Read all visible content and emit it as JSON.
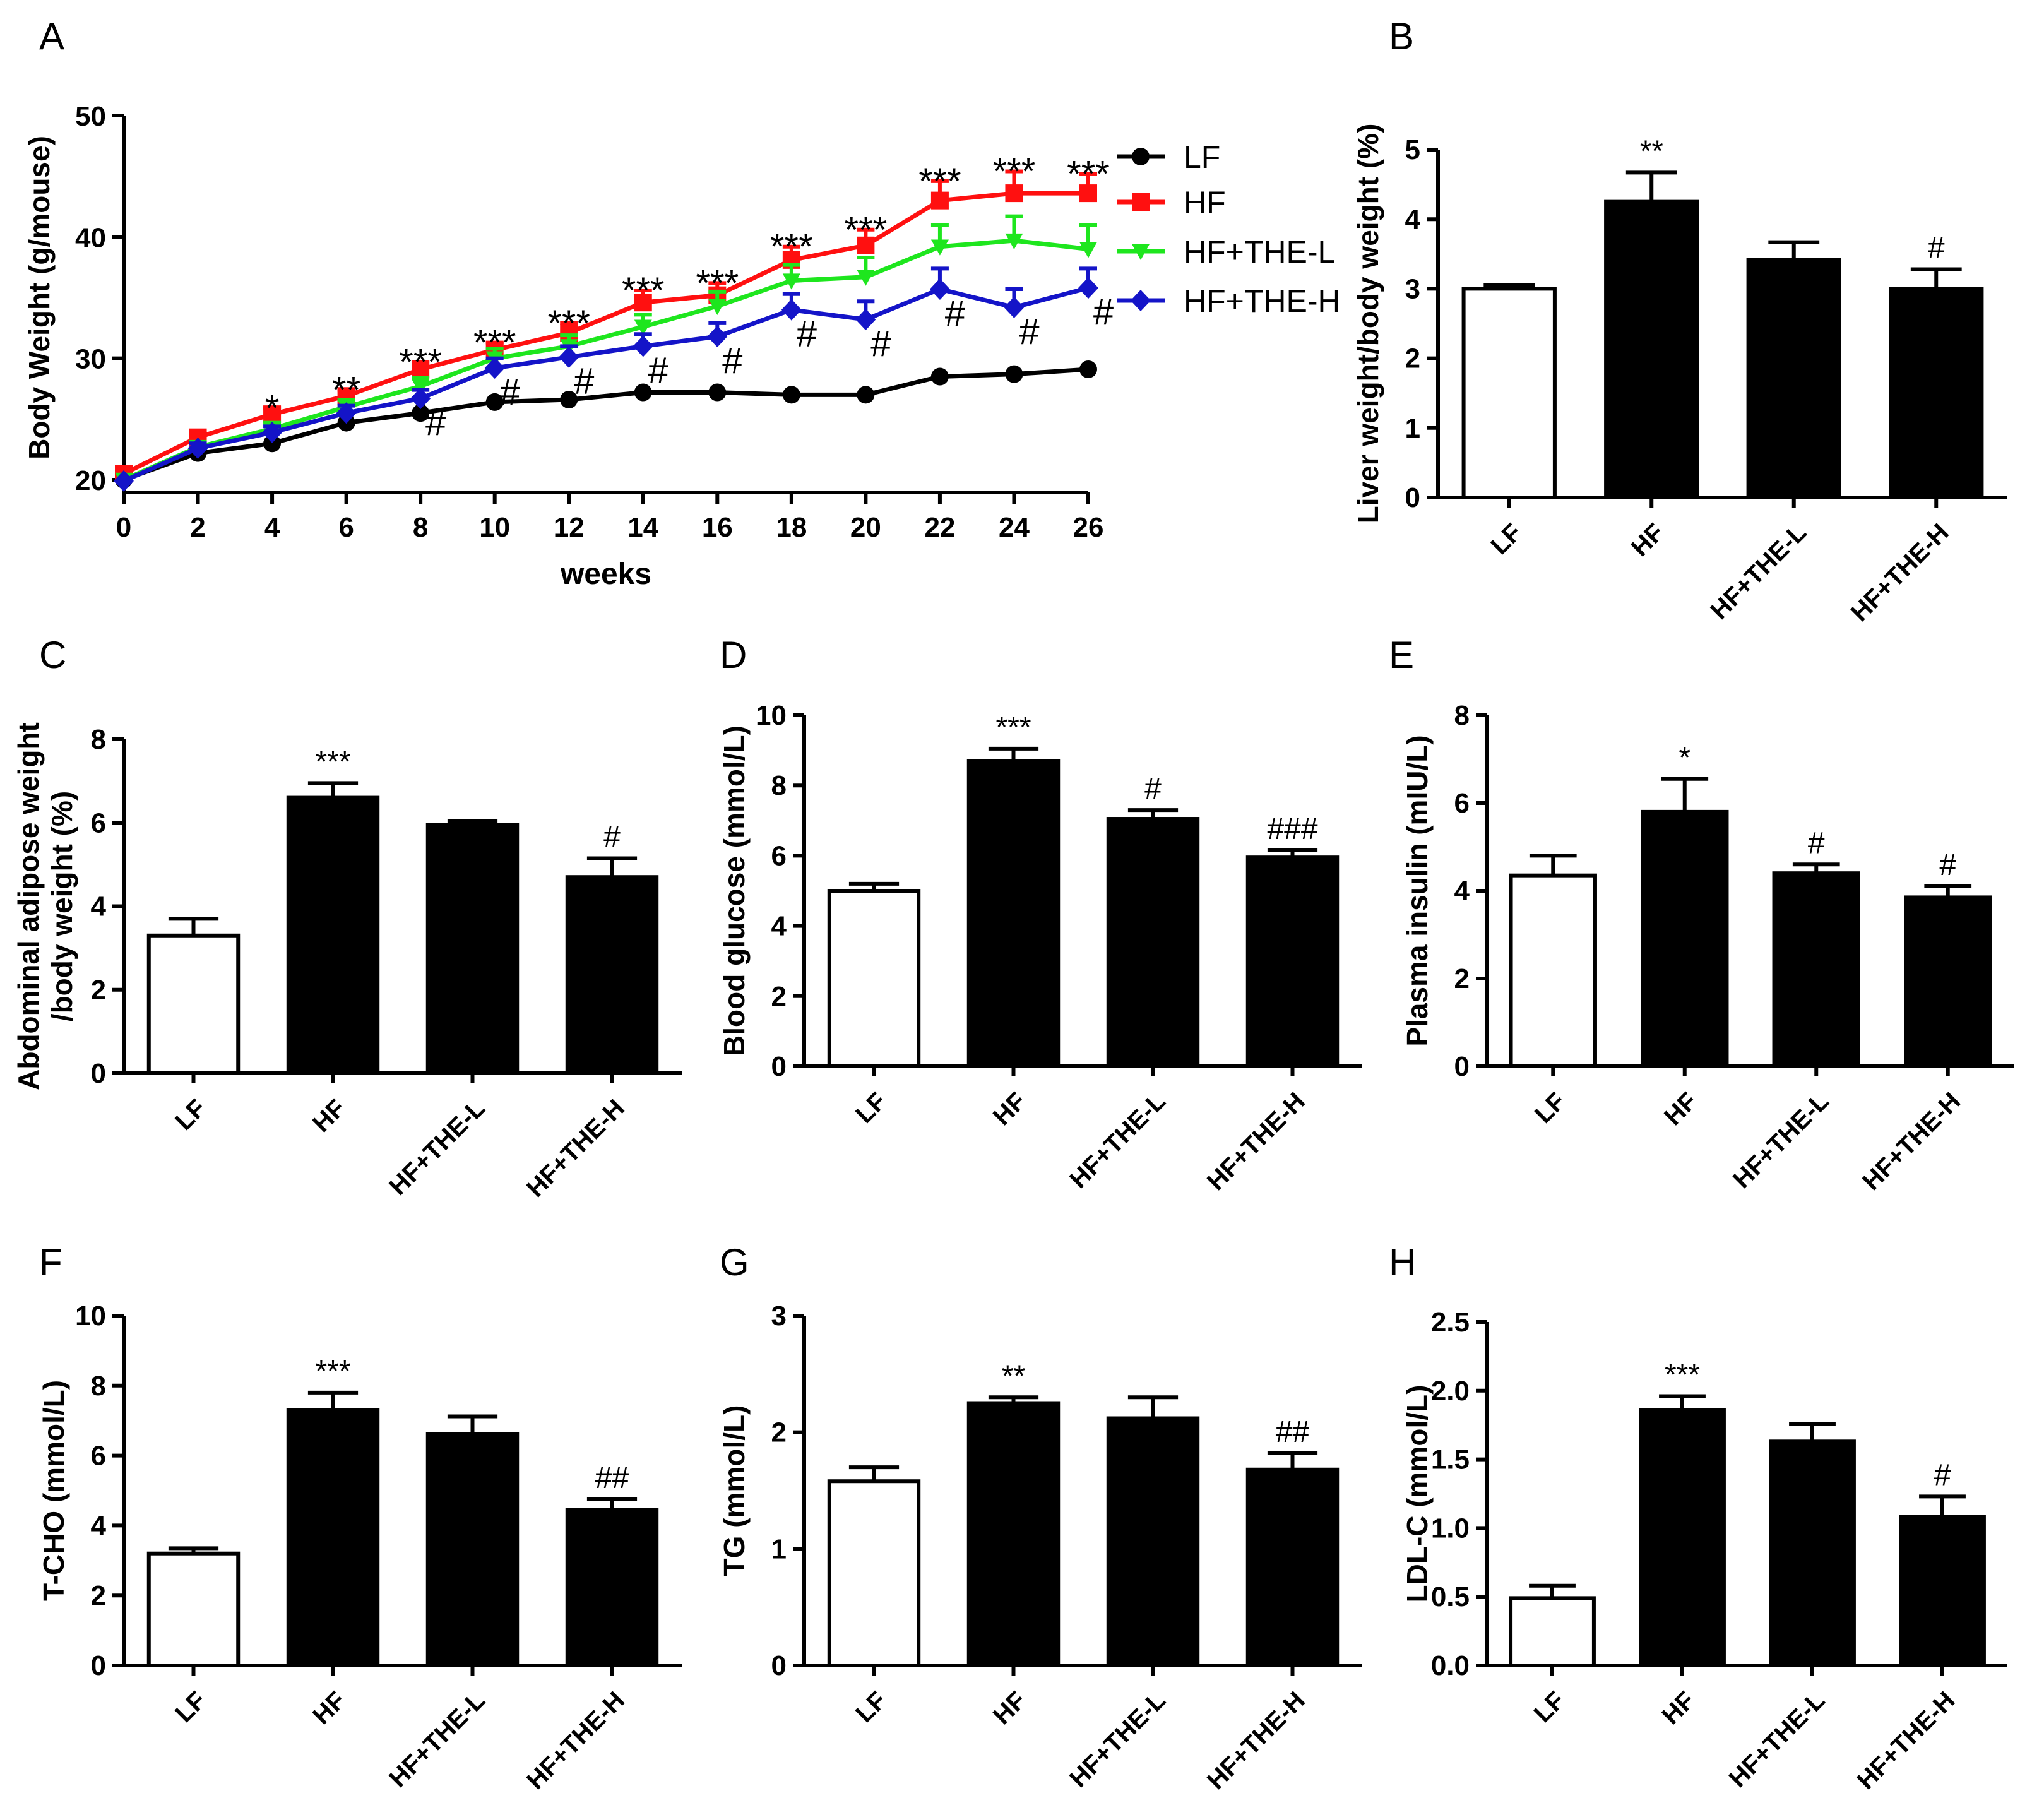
{
  "chart_data": [
    {
      "panel": "A",
      "type": "line",
      "xlabel": "weeks",
      "ylabel": "Body Weight (g/mouse)",
      "xlim": [
        0,
        26
      ],
      "ylim": [
        20,
        50
      ],
      "xticks": [
        0,
        2,
        4,
        6,
        8,
        10,
        12,
        14,
        16,
        18,
        20,
        22,
        24,
        26
      ],
      "yticks": [
        20,
        30,
        40,
        50
      ],
      "x": [
        0,
        2,
        4,
        6,
        8,
        10,
        12,
        14,
        16,
        18,
        20,
        22,
        24,
        26
      ],
      "series": [
        {
          "name": "LF",
          "color": "#000000",
          "marker": "circle",
          "values": [
            20.0,
            22.2,
            23.0,
            24.7,
            25.5,
            26.4,
            26.6,
            27.2,
            27.2,
            27.0,
            27.0,
            28.5,
            28.7,
            29.1
          ],
          "errors": [
            0.3,
            0.3,
            0.3,
            0.3,
            0.3,
            0.3,
            0.3,
            0.3,
            0.3,
            0.5,
            0.3,
            0.3,
            0.3,
            0.3
          ]
        },
        {
          "name": "HF",
          "color": "#ff1010",
          "marker": "square",
          "values": [
            20.5,
            23.5,
            25.4,
            26.9,
            29.1,
            30.7,
            32.1,
            34.6,
            35.2,
            38.1,
            39.3,
            43.0,
            43.6,
            43.6
          ],
          "errors": [
            0.3,
            0.4,
            0.5,
            0.5,
            0.6,
            0.6,
            0.8,
            1.0,
            1.0,
            1.1,
            1.3,
            1.6,
            1.8,
            1.6
          ]
        },
        {
          "name": "HF+THE-L",
          "color": "#1ee61e",
          "marker": "triangle-down",
          "values": [
            20.0,
            22.7,
            24.2,
            26.0,
            27.7,
            30.0,
            31.0,
            32.6,
            34.3,
            36.4,
            36.7,
            39.2,
            39.7,
            39.0
          ],
          "errors": [
            0.3,
            0.4,
            0.5,
            0.6,
            0.7,
            0.8,
            0.9,
            1.0,
            1.2,
            1.3,
            1.6,
            1.8,
            2.0,
            2.0
          ]
        },
        {
          "name": "HF+THE-H",
          "color": "#1414c8",
          "marker": "diamond",
          "values": [
            19.9,
            22.6,
            23.9,
            25.5,
            26.7,
            29.2,
            30.1,
            31.0,
            31.8,
            34.0,
            33.2,
            35.7,
            34.2,
            35.8
          ],
          "errors": [
            0.3,
            0.4,
            0.5,
            0.6,
            0.7,
            0.8,
            0.9,
            1.0,
            1.1,
            1.3,
            1.5,
            1.7,
            1.5,
            1.6
          ]
        }
      ],
      "star_annotations": [
        "",
        "",
        "*",
        "**",
        "***",
        "***",
        "***",
        "***",
        "***",
        "***",
        "***",
        "***",
        "***",
        "***"
      ],
      "hash_annotations": [
        "",
        "",
        "",
        "",
        "#",
        "#",
        "#",
        "#",
        "#",
        "#",
        "#",
        "#",
        "#",
        "#"
      ]
    },
    {
      "panel": "B",
      "type": "bar",
      "ylabel": "Liver weight/body weight (%)",
      "categories": [
        "LF",
        "HF",
        "HF+THE-L",
        "HF+THE-H"
      ],
      "values": [
        3.0,
        4.25,
        3.42,
        3.0
      ],
      "errors": [
        0.05,
        0.42,
        0.25,
        0.28
      ],
      "annotations": [
        "",
        "**",
        "",
        "#"
      ],
      "ylim": [
        0,
        5
      ],
      "yticks": [
        0,
        1,
        2,
        3,
        4,
        5
      ]
    },
    {
      "panel": "C",
      "type": "bar",
      "ylabel": "Abdominal adipose weight /body weight (%)",
      "ylabel_lines": [
        "Abdominal adipose weight",
        "/body weight (%)"
      ],
      "categories": [
        "LF",
        "HF",
        "HF+THE-L",
        "HF+THE-H"
      ],
      "values": [
        3.3,
        6.6,
        5.95,
        4.7
      ],
      "errors": [
        0.4,
        0.35,
        0.1,
        0.45
      ],
      "annotations": [
        "",
        "***",
        "",
        "#"
      ],
      "ylim": [
        0,
        8
      ],
      "yticks": [
        0,
        2,
        4,
        6,
        8
      ]
    },
    {
      "panel": "D",
      "type": "bar",
      "ylabel": "Blood glucose (mmol/L)",
      "categories": [
        "LF",
        "HF",
        "HF+THE-L",
        "HF+THE-H"
      ],
      "values": [
        5.0,
        8.7,
        7.05,
        5.95
      ],
      "errors": [
        0.2,
        0.35,
        0.25,
        0.2
      ],
      "annotations": [
        "",
        "***",
        "#",
        "###"
      ],
      "ylim": [
        0,
        10
      ],
      "yticks": [
        0,
        2,
        4,
        6,
        8,
        10
      ]
    },
    {
      "panel": "E",
      "type": "bar",
      "ylabel": "Plasma insulin (mIU/L)",
      "categories": [
        "LF",
        "HF",
        "HF+THE-L",
        "HF+THE-H"
      ],
      "values": [
        4.35,
        5.8,
        4.4,
        3.85
      ],
      "errors": [
        0.45,
        0.75,
        0.2,
        0.25
      ],
      "annotations": [
        "",
        "*",
        "#",
        "#"
      ],
      "ylim": [
        0,
        8
      ],
      "yticks": [
        0,
        2,
        4,
        6,
        8
      ]
    },
    {
      "panel": "F",
      "type": "bar",
      "ylabel": "T-CHO (mmol/L)",
      "categories": [
        "LF",
        "HF",
        "HF+THE-L",
        "HF+THE-H"
      ],
      "values": [
        3.2,
        7.3,
        6.62,
        4.45
      ],
      "errors": [
        0.15,
        0.5,
        0.5,
        0.3
      ],
      "annotations": [
        "",
        "***",
        "",
        "##"
      ],
      "ylim": [
        0,
        10
      ],
      "yticks": [
        0,
        2,
        4,
        6,
        8,
        10
      ]
    },
    {
      "panel": "G",
      "type": "bar",
      "ylabel": "TG (mmol/L)",
      "categories": [
        "LF",
        "HF",
        "HF+THE-L",
        "HF+THE-H"
      ],
      "values": [
        1.58,
        2.25,
        2.12,
        1.68
      ],
      "errors": [
        0.12,
        0.05,
        0.18,
        0.14
      ],
      "annotations": [
        "",
        "**",
        "",
        "##"
      ],
      "ylim": [
        0,
        3
      ],
      "yticks": [
        0,
        1,
        2,
        3
      ]
    },
    {
      "panel": "H",
      "type": "bar",
      "ylabel": "LDL-C (mmol/L)",
      "categories": [
        "LF",
        "HF",
        "HF+THE-L",
        "HF+THE-H"
      ],
      "values": [
        0.49,
        1.86,
        1.63,
        1.08
      ],
      "errors": [
        0.09,
        0.1,
        0.13,
        0.15
      ],
      "annotations": [
        "",
        "***",
        "",
        "#"
      ],
      "ylim": [
        0,
        2.5
      ],
      "yticks": [
        0.0,
        0.5,
        1.0,
        1.5,
        2.0,
        2.5
      ],
      "ytick_decimals": 1
    }
  ]
}
